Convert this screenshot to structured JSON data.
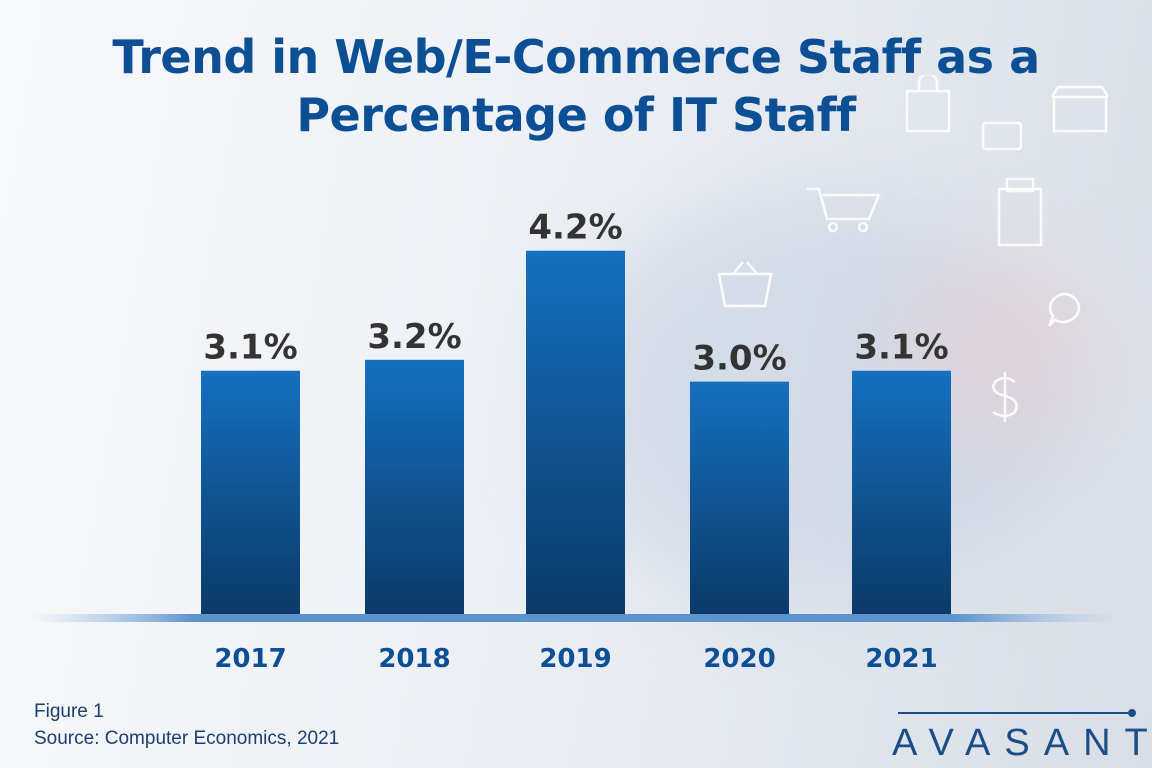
{
  "chart_data": {
    "type": "bar",
    "title": "Trend in Web/E-Commerce Staff as a Percentage of IT Staff",
    "categories": [
      "2017",
      "2018",
      "2019",
      "2020",
      "2021"
    ],
    "values": [
      3.1,
      3.2,
      4.2,
      3.0,
      3.1
    ],
    "data_labels": [
      "3.1%",
      "3.2%",
      "4.2%",
      "3.0%",
      "3.1%"
    ],
    "unit": "%",
    "xlabel": "",
    "ylabel": "",
    "ylim": [
      0.87,
      4.5
    ],
    "grid": false,
    "legend": "none",
    "bar_color_top": "#1570c0",
    "bar_color_bottom": "#0b3a68",
    "title_color": "#0d4f95"
  },
  "footer": {
    "figure": "Figure 1",
    "source": "Source: Computer Economics, 2021"
  },
  "logo": {
    "text": "AVASANT"
  }
}
